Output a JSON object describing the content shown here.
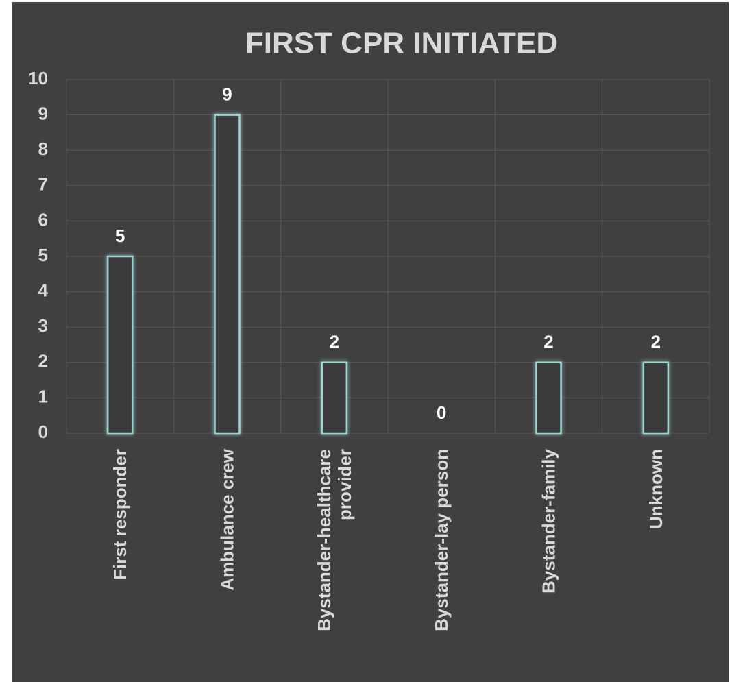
{
  "chart_data": {
    "type": "bar",
    "title": "FIRST CPR INITIATED",
    "categories": [
      "First responder",
      "Ambulance crew",
      "Bystander-healthcare provider",
      "Bystander-lay person",
      "Bystander-family",
      "Unknown"
    ],
    "values": [
      5,
      9,
      2,
      0,
      2,
      2
    ],
    "color": "#9fd6d2",
    "ylim": [
      0,
      10
    ],
    "yticks": [
      0,
      1,
      2,
      3,
      4,
      5,
      6,
      7,
      8,
      9,
      10
    ],
    "grid": true
  }
}
